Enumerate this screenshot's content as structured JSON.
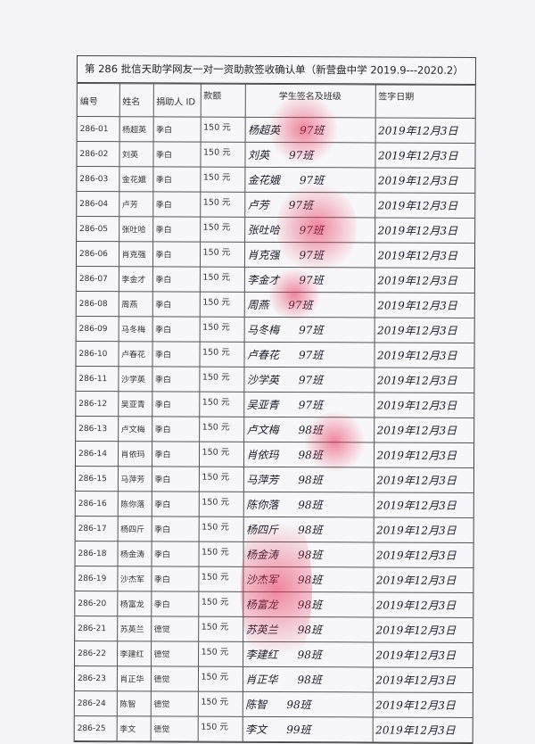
{
  "title": "第 286 批信天助学网友一对一资助款签收确认单（新营盘中学 2019.9---2020.2）",
  "headers": [
    "编号",
    "姓名",
    "捐助人 ID",
    "款额",
    "学生签名及班级",
    "签字日期"
  ],
  "rows": [
    {
      "id": "286-01",
      "name": "杨超英",
      "donor": "季白",
      "amount": "150 元",
      "signature": "杨超英",
      "class": "97班",
      "date": "2019年12月3日"
    },
    {
      "id": "286-02",
      "name": "刘英",
      "donor": "季白",
      "amount": "150 元",
      "signature": "刘英",
      "class": "97班",
      "date": "2019年12月3日"
    },
    {
      "id": "286-03",
      "name": "金花娥",
      "donor": "季白",
      "amount": "150 元",
      "signature": "金花娥",
      "class": "97班",
      "date": "2019年12月3日"
    },
    {
      "id": "286-04",
      "name": "卢芳",
      "donor": "季白",
      "amount": "150 元",
      "signature": "卢芳",
      "class": "97班",
      "date": "2019年12月3日"
    },
    {
      "id": "286-05",
      "name": "张吐哈",
      "donor": "季白",
      "amount": "150 元",
      "signature": "张吐哈",
      "class": "97班",
      "date": "2019年12月3日"
    },
    {
      "id": "286-06",
      "name": "肖克强",
      "donor": "季白",
      "amount": "150 元",
      "signature": "肖克强",
      "class": "97班",
      "date": "2019年12月3日"
    },
    {
      "id": "286-07",
      "name": "李金才",
      "donor": "季白",
      "amount": "150 元",
      "signature": "李金才",
      "class": "97班",
      "date": "2019年12月3日"
    },
    {
      "id": "286-08",
      "name": "周燕",
      "donor": "季白",
      "amount": "150 元",
      "signature": "周燕",
      "class": "97班",
      "date": "2019年12月3日"
    },
    {
      "id": "286-09",
      "name": "马冬梅",
      "donor": "季白",
      "amount": "150 元",
      "signature": "马冬梅",
      "class": "97班",
      "date": "2019年12月3日"
    },
    {
      "id": "286-10",
      "name": "卢春花",
      "donor": "季白",
      "amount": "150 元",
      "signature": "卢春花",
      "class": "97班",
      "date": "2019年12月3日"
    },
    {
      "id": "286-11",
      "name": "沙学英",
      "donor": "季白",
      "amount": "150 元",
      "signature": "沙学英",
      "class": "97班",
      "date": "2019年12月3日"
    },
    {
      "id": "286-12",
      "name": "吴亚青",
      "donor": "季白",
      "amount": "150 元",
      "signature": "吴亚青",
      "class": "97班",
      "date": "2019年12月3日"
    },
    {
      "id": "286-13",
      "name": "卢文梅",
      "donor": "季白",
      "amount": "150 元",
      "signature": "卢文梅",
      "class": "98班",
      "date": "2019年12月3日"
    },
    {
      "id": "286-14",
      "name": "肖依玛",
      "donor": "季白",
      "amount": "150 元",
      "signature": "肖依玛",
      "class": "98班",
      "date": "2019年12月3日"
    },
    {
      "id": "286-15",
      "name": "马萍芳",
      "donor": "季白",
      "amount": "150 元",
      "signature": "马萍芳",
      "class": "98班",
      "date": "2019年12月3日"
    },
    {
      "id": "286-16",
      "name": "陈你落",
      "donor": "季白",
      "amount": "150 元",
      "signature": "陈你落",
      "class": "98班",
      "date": "2019年12月3日"
    },
    {
      "id": "286-17",
      "name": "杨四斤",
      "donor": "季白",
      "amount": "150 元",
      "signature": "杨四斤",
      "class": "98班",
      "date": "2019年12月3日"
    },
    {
      "id": "286-18",
      "name": "杨金涛",
      "donor": "季白",
      "amount": "150 元",
      "signature": "杨金涛",
      "class": "98班",
      "date": "2019年12月3日"
    },
    {
      "id": "286-19",
      "name": "沙杰军",
      "donor": "季白",
      "amount": "150 元",
      "signature": "沙杰军",
      "class": "98班",
      "date": "2019年12月3日"
    },
    {
      "id": "286-20",
      "name": "杨富龙",
      "donor": "季白",
      "amount": "150 元",
      "signature": "杨富龙",
      "class": "98班",
      "date": "2019年12月3日"
    },
    {
      "id": "286-21",
      "name": "苏英兰",
      "donor": "德觉",
      "amount": "150 元",
      "signature": "苏英兰",
      "class": "98班",
      "date": "2019年12月3日"
    },
    {
      "id": "286-22",
      "name": "李建红",
      "donor": "德觉",
      "amount": "150 元",
      "signature": "李建红",
      "class": "98班",
      "date": "2019年12月3日"
    },
    {
      "id": "286-23",
      "name": "肖正华",
      "donor": "德觉",
      "amount": "150 元",
      "signature": "肖正华",
      "class": "98班",
      "date": "2019年12月3日"
    },
    {
      "id": "286-24",
      "name": "陈智",
      "donor": "德觉",
      "amount": "150 元",
      "signature": "陈智",
      "class": "98班",
      "date": "2019年12月3日"
    },
    {
      "id": "286-25",
      "name": "李文",
      "donor": "德觉",
      "amount": "150 元",
      "signature": "李文",
      "class": "99班",
      "date": "2019年12月3日"
    }
  ]
}
